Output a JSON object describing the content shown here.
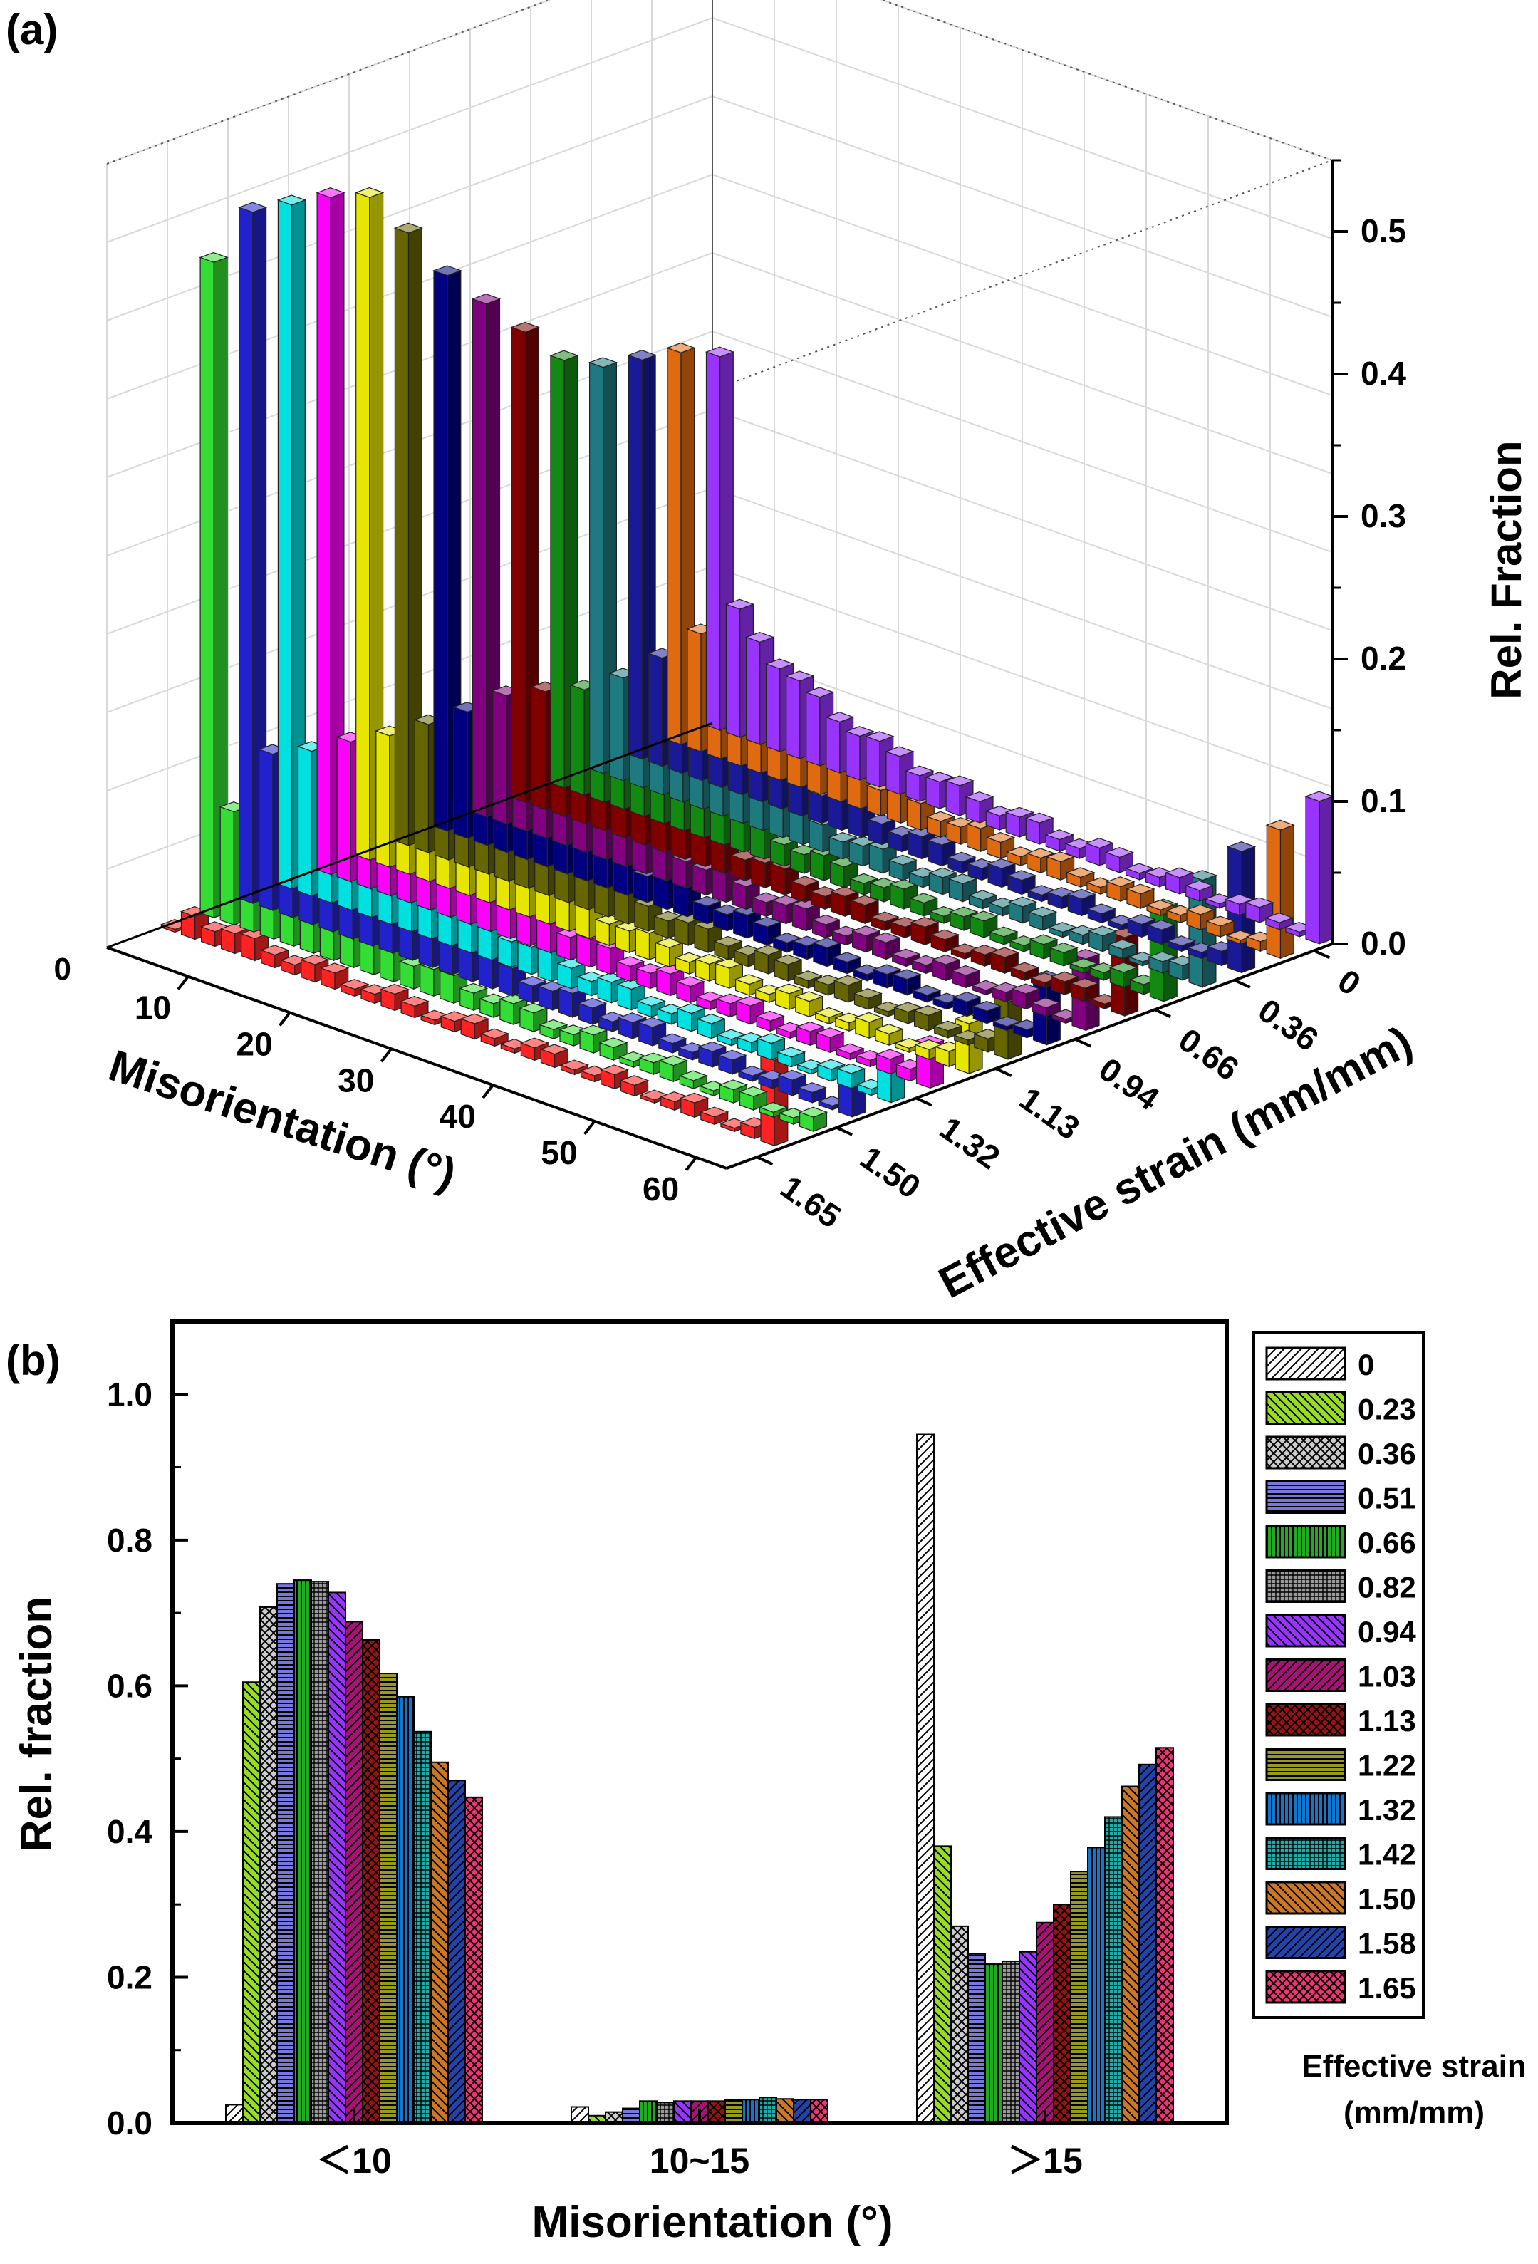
{
  "panel_a": {
    "label": "(a)",
    "chart_data": {
      "type": "bar",
      "x_label": "Misorientation (°)",
      "x_ticks": [
        "10",
        "20",
        "30",
        "40",
        "50",
        "60"
      ],
      "z_label": "Rel. Fraction",
      "z_ticks": [
        "0.0",
        "0.1",
        "0.2",
        "0.3",
        "0.4",
        "0.5"
      ],
      "z_corner_tick": "0",
      "z_range": [
        0,
        0.55
      ],
      "x_range": [
        2,
        63
      ],
      "y_label": "Effective strain (mm/mm)",
      "y_ticks": [
        "0",
        "0.36",
        "0.66",
        "0.94",
        "1.13",
        "1.32",
        "1.50",
        "1.65"
      ],
      "series": [
        {
          "strain": "1.65",
          "color": "#9933ff",
          "first": 0.262,
          "second": 0.08,
          "last": 0.1
        },
        {
          "strain": "1.58",
          "color": "#e06a10",
          "first": 0.275,
          "second": 0.075,
          "last": 0.09
        },
        {
          "strain": "1.50",
          "color": "#1a1a99",
          "first": 0.28,
          "second": 0.072,
          "last": 0.085
        },
        {
          "strain": "1.42",
          "color": "#1f7a80",
          "first": 0.285,
          "second": 0.07,
          "last": 0.075
        },
        {
          "strain": "1.32",
          "color": "#128a12",
          "first": 0.3,
          "second": 0.07,
          "last": 0.065
        },
        {
          "strain": "1.22",
          "color": "#800000",
          "first": 0.33,
          "second": 0.075,
          "last": 0.055
        },
        {
          "strain": "1.13",
          "color": "#800080",
          "first": 0.36,
          "second": 0.08,
          "last": 0.05
        },
        {
          "strain": "1.03",
          "color": "#000080",
          "first": 0.39,
          "second": 0.08,
          "last": 0.045
        },
        {
          "strain": "0.94",
          "color": "#666600",
          "first": 0.43,
          "second": 0.085,
          "last": 0.04
        },
        {
          "strain": "0.82",
          "color": "#e6e600",
          "first": 0.465,
          "second": 0.09,
          "last": 0.035
        },
        {
          "strain": "0.66",
          "color": "#ff00ff",
          "first": 0.475,
          "second": 0.095,
          "last": 0.03
        },
        {
          "strain": "0.51",
          "color": "#00e0e0",
          "first": 0.48,
          "second": 0.095,
          "last": 0.025
        },
        {
          "strain": "0.36",
          "color": "#2222cc",
          "first": 0.485,
          "second": 0.1,
          "last": 0.02
        },
        {
          "strain": "0.23",
          "color": "#33dd33",
          "first": 0.46,
          "second": 0.07,
          "last": 0.01
        },
        {
          "strain": "0",
          "color": "#ff2222",
          "first": 0.0,
          "second": 0.01,
          "last": 0.06
        }
      ]
    }
  },
  "panel_b": {
    "label": "(b)",
    "chart_data": {
      "type": "bar",
      "xlabel": "Misorientation (°)",
      "ylabel": "Rel. fraction",
      "ylim": [
        0,
        1.1
      ],
      "yticks": [
        "0.0",
        "0.2",
        "0.4",
        "0.6",
        "0.8",
        "1.0"
      ],
      "categories": [
        "＜10",
        "10~15",
        "＞15"
      ],
      "legend_title_line1": "Effective strain",
      "legend_title_line2": "(mm/mm)",
      "series": [
        {
          "name": "0",
          "color": "#ffffff",
          "pattern": "diag-right",
          "values": [
            0.025,
            0.022,
            0.945
          ]
        },
        {
          "name": "0.23",
          "color": "#99dd22",
          "pattern": "diag-left",
          "values": [
            0.605,
            0.01,
            0.38
          ]
        },
        {
          "name": "0.36",
          "color": "#cccccc",
          "pattern": "crosshatch",
          "values": [
            0.708,
            0.015,
            0.27
          ]
        },
        {
          "name": "0.51",
          "color": "#7777dd",
          "pattern": "horizontal",
          "values": [
            0.74,
            0.02,
            0.232
          ]
        },
        {
          "name": "0.66",
          "color": "#22aa22",
          "pattern": "vertical",
          "values": [
            0.745,
            0.03,
            0.218
          ]
        },
        {
          "name": "0.82",
          "color": "#999999",
          "pattern": "grid",
          "values": [
            0.743,
            0.028,
            0.222
          ]
        },
        {
          "name": "0.94",
          "color": "#9933ff",
          "pattern": "diag-left",
          "values": [
            0.728,
            0.03,
            0.235
          ]
        },
        {
          "name": "1.03",
          "color": "#aa1177",
          "pattern": "diag-right",
          "values": [
            0.688,
            0.03,
            0.275
          ]
        },
        {
          "name": "1.13",
          "color": "#991111",
          "pattern": "crosshatch",
          "values": [
            0.663,
            0.03,
            0.3
          ]
        },
        {
          "name": "1.22",
          "color": "#999922",
          "pattern": "horizontal",
          "values": [
            0.617,
            0.032,
            0.345
          ]
        },
        {
          "name": "1.32",
          "color": "#1177cc",
          "pattern": "vertical",
          "values": [
            0.585,
            0.032,
            0.378
          ]
        },
        {
          "name": "1.42",
          "color": "#22aaaa",
          "pattern": "grid",
          "values": [
            0.537,
            0.035,
            0.42
          ]
        },
        {
          "name": "1.50",
          "color": "#cc7722",
          "pattern": "diag-left",
          "values": [
            0.495,
            0.033,
            0.462
          ]
        },
        {
          "name": "1.58",
          "color": "#2244aa",
          "pattern": "diag-right",
          "values": [
            0.47,
            0.032,
            0.492
          ]
        },
        {
          "name": "1.65",
          "color": "#ee3377",
          "pattern": "crosshatch",
          "values": [
            0.447,
            0.032,
            0.515
          ]
        }
      ]
    }
  }
}
